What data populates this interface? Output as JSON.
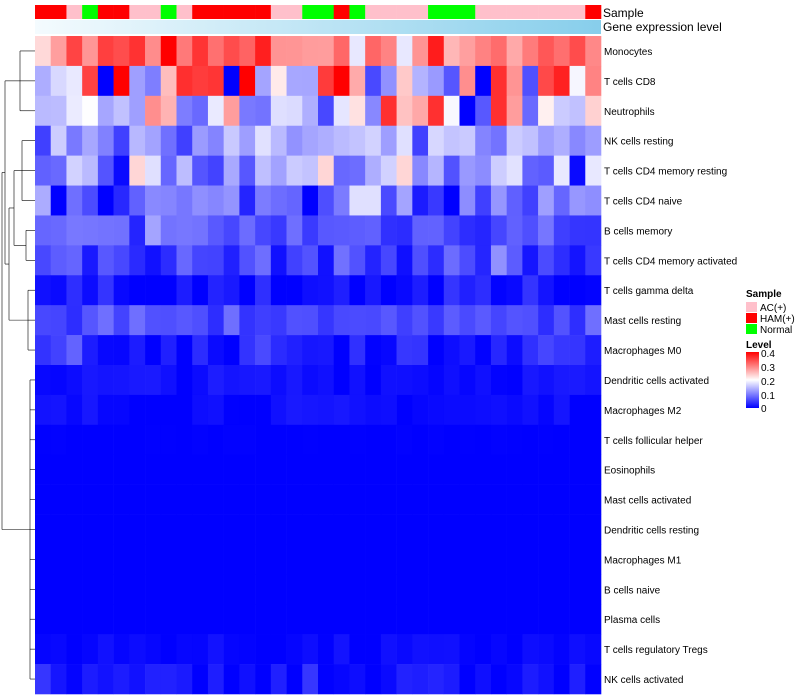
{
  "chart_data": {
    "type": "heatmap",
    "annotation_tracks": [
      "Sample",
      "Gene expression level"
    ],
    "rows": [
      {
        "name": "Monocytes",
        "group": 0,
        "mean": 0.31,
        "spread": 0.08
      },
      {
        "name": "T cells CD8",
        "group": 0,
        "mean": 0.22,
        "spread": 0.17
      },
      {
        "name": "Neutrophils",
        "group": 0,
        "mean": 0.17,
        "spread": 0.12
      },
      {
        "name": "NK cells resting",
        "group": 1,
        "mean": 0.13,
        "spread": 0.05
      },
      {
        "name": "T cells CD4 memory resting",
        "group": 1,
        "mean": 0.12,
        "spread": 0.07
      },
      {
        "name": "T cells CD4 naive",
        "group": 1,
        "mean": 0.08,
        "spread": 0.06
      },
      {
        "name": "B cells memory",
        "group": 2,
        "mean": 0.065,
        "spread": 0.04
      },
      {
        "name": "T cells CD4 memory activated",
        "group": 2,
        "mean": 0.05,
        "spread": 0.04
      },
      {
        "name": "T cells gamma delta",
        "group": 3,
        "mean": 0.012,
        "spread": 0.03
      },
      {
        "name": "Mast cells resting",
        "group": 3,
        "mean": 0.055,
        "spread": 0.02
      },
      {
        "name": "Macrophages M0",
        "group": 3,
        "mean": 0.03,
        "spread": 0.03
      },
      {
        "name": "Dendritic cells activated",
        "group": 4,
        "mean": 0.012,
        "spread": 0.012
      },
      {
        "name": "Macrophages M2",
        "group": 4,
        "mean": 0.008,
        "spread": 0.012
      },
      {
        "name": "T cells follicular helper",
        "group": 4,
        "mean": 0.0,
        "spread": 0.002
      },
      {
        "name": "Eosinophils",
        "group": 4,
        "mean": 0.0,
        "spread": 0.0
      },
      {
        "name": "Mast cells activated",
        "group": 4,
        "mean": 0.0,
        "spread": 0.0
      },
      {
        "name": "Dendritic cells resting",
        "group": 4,
        "mean": 0.0,
        "spread": 0.0
      },
      {
        "name": "Macrophages M1",
        "group": 4,
        "mean": 0.0,
        "spread": 0.0
      },
      {
        "name": "B cells naive",
        "group": 4,
        "mean": 0.0,
        "spread": 0.0
      },
      {
        "name": "Plasma cells",
        "group": 4,
        "mean": 0.0,
        "spread": 0.0
      },
      {
        "name": "T cells regulatory  Tregs",
        "group": 4,
        "mean": 0.005,
        "spread": 0.01
      },
      {
        "name": "NK cells activated",
        "group": 4,
        "mean": 0.01,
        "spread": 0.02
      }
    ],
    "samples": [
      "HAM(+)",
      "HAM(+)",
      "AC(+)",
      "Normal",
      "HAM(+)",
      "HAM(+)",
      "AC(+)",
      "AC(+)",
      "Normal",
      "AC(+)",
      "HAM(+)",
      "HAM(+)",
      "HAM(+)",
      "HAM(+)",
      "HAM(+)",
      "AC(+)",
      "AC(+)",
      "Normal",
      "Normal",
      "HAM(+)",
      "Normal",
      "AC(+)",
      "AC(+)",
      "AC(+)",
      "AC(+)",
      "Normal",
      "Normal",
      "Normal",
      "AC(+)",
      "AC(+)",
      "AC(+)",
      "AC(+)",
      "AC(+)",
      "AC(+)",
      "AC(+)",
      "HAM(+)"
    ],
    "legend": {
      "sample_title": "Sample",
      "sample_entries": [
        {
          "label": "AC(+)",
          "color": "#ffc0cb"
        },
        {
          "label": "HAM(+)",
          "color": "#ff0000"
        },
        {
          "label": "Normal",
          "color": "#00ff00"
        }
      ],
      "level_title": "Level",
      "level_ticks": [
        "0.4",
        "0.3",
        "0.2",
        "0.1",
        "0"
      ],
      "level_range": [
        0,
        0.4
      ]
    },
    "colors": {
      "low": "#0000ff",
      "mid": "#ffffff",
      "high": "#ff0000",
      "annotation": "#87ceeb"
    }
  }
}
